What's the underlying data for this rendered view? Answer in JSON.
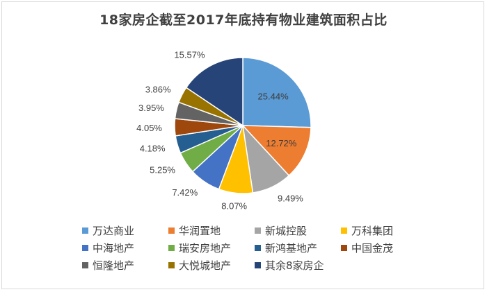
{
  "chart_data": {
    "type": "pie",
    "title": "18家房企截至2017年底持有物业建筑面积占比",
    "categories": [
      "万达商业",
      "华润置地",
      "新城控股",
      "万科集团",
      "中海地产",
      "瑞安房地产",
      "新鸿基地产",
      "中国金茂",
      "恒隆地产",
      "大悦城地产",
      "其余8家房企"
    ],
    "values": [
      25.44,
      12.72,
      9.49,
      8.07,
      7.42,
      5.25,
      4.18,
      4.05,
      3.95,
      3.86,
      15.57
    ],
    "labels": [
      "25.44%",
      "12.72%",
      "9.49%",
      "8.07%",
      "7.42%",
      "5.25%",
      "4.18%",
      "4.05%",
      "3.95%",
      "3.86%",
      "15.57%"
    ],
    "colors": [
      "#5b9bd5",
      "#ed7d31",
      "#a5a5a5",
      "#ffc000",
      "#4472c4",
      "#70ad47",
      "#255e91",
      "#9e480e",
      "#636363",
      "#997300",
      "#264478"
    ],
    "legend": "bottom",
    "start_angle_deg": 0,
    "direction": "clockwise"
  }
}
